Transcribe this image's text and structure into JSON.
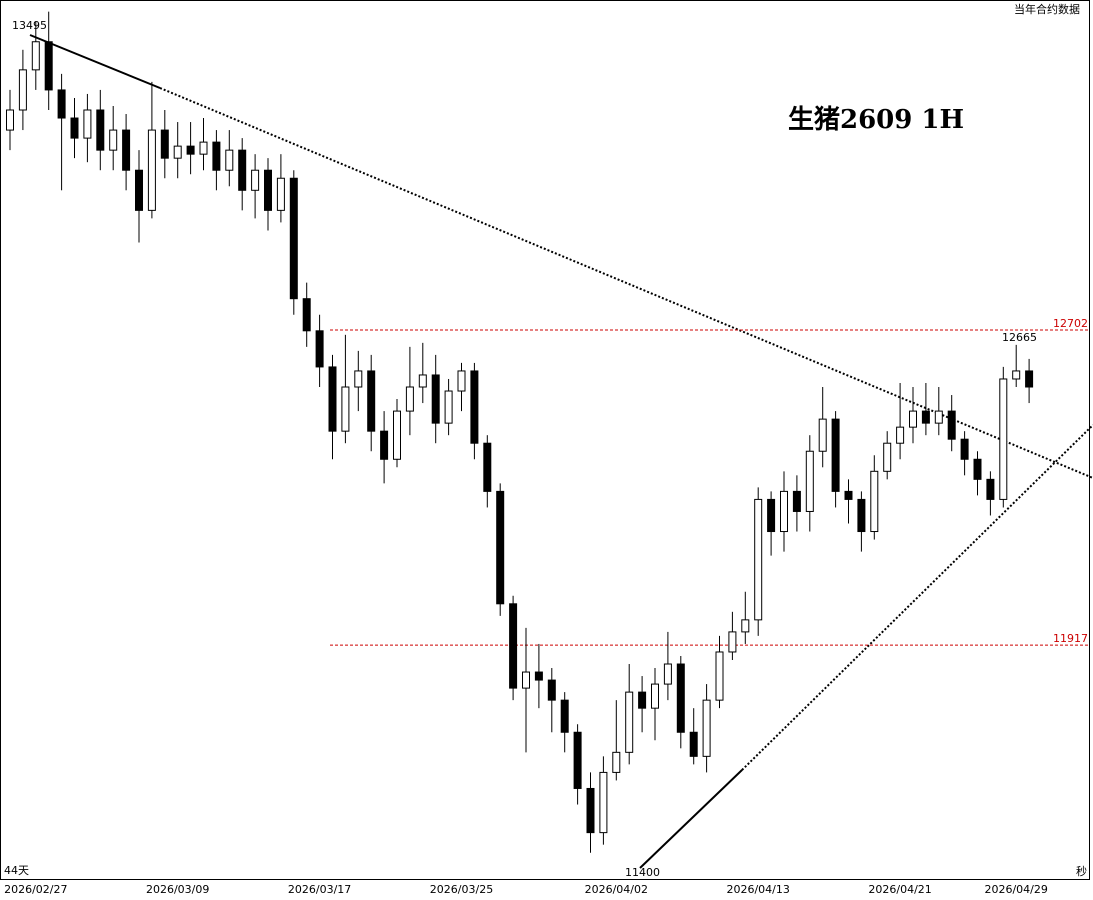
{
  "chart_data": {
    "type": "candlestick",
    "title": "生猪2609  1H",
    "subtitle": "当年合约数据",
    "span_label": "44天",
    "corner_label": "秒",
    "categories": [
      null,
      null,
      "2026/02/27",
      null,
      null,
      null,
      null,
      null,
      null,
      null,
      null,
      null,
      null,
      "2026/03/09",
      null,
      null,
      null,
      null,
      null,
      null,
      null,
      null,
      null,
      null,
      "2026/03/17",
      null,
      null,
      null,
      null,
      null,
      null,
      null,
      null,
      null,
      null,
      "2026/03/25",
      null,
      null,
      null,
      null,
      null,
      null,
      null,
      null,
      null,
      null,
      null,
      "2026/04/02",
      null,
      null,
      null,
      null,
      null,
      null,
      null,
      null,
      null,
      null,
      "2026/04/13",
      null,
      null,
      null,
      null,
      null,
      null,
      null,
      null,
      null,
      null,
      "2026/04/21",
      null,
      null,
      null,
      null,
      null,
      null,
      null,
      null,
      "2026/04/29",
      null
    ],
    "open": [
      13200,
      13250,
      13350,
      13420,
      13300,
      13230,
      13180,
      13250,
      13150,
      13200,
      13100,
      13000,
      13200,
      13130,
      13160,
      13140,
      13170,
      13100,
      13150,
      13050,
      13100,
      13000,
      13080,
      12780,
      12700,
      12610,
      12450,
      12560,
      12600,
      12450,
      12380,
      12500,
      12560,
      12590,
      12470,
      12550,
      12600,
      12420,
      12300,
      12020,
      11810,
      11850,
      11830,
      11780,
      11700,
      11560,
      11450,
      11600,
      11650,
      11800,
      11760,
      11820,
      11870,
      11700,
      11640,
      11780,
      11900,
      11950,
      11980,
      12280,
      12200,
      12300,
      12250,
      12400,
      12480,
      12300,
      12280,
      12200,
      12350,
      12420,
      12460,
      12500,
      12470,
      12500,
      12430,
      12380,
      12330,
      12280,
      12580,
      12600
    ],
    "high": [
      13300,
      13400,
      13470,
      13495,
      13340,
      13280,
      13290,
      13300,
      13260,
      13240,
      13150,
      13320,
      13250,
      13220,
      13220,
      13230,
      13200,
      13200,
      13180,
      13140,
      13130,
      13140,
      13100,
      12820,
      12740,
      12640,
      12690,
      12650,
      12640,
      12500,
      12530,
      12660,
      12670,
      12640,
      12580,
      12620,
      12620,
      12440,
      12320,
      12040,
      11960,
      11920,
      11860,
      11800,
      11720,
      11600,
      11640,
      11780,
      11870,
      11840,
      11860,
      11950,
      11890,
      11760,
      11820,
      11940,
      12000,
      12050,
      12310,
      12300,
      12350,
      12340,
      12440,
      12560,
      12500,
      12330,
      12300,
      12390,
      12450,
      12570,
      12560,
      12570,
      12560,
      12540,
      12450,
      12400,
      12350,
      12610,
      12665,
      12630
    ],
    "low": [
      13150,
      13200,
      13300,
      13250,
      13050,
      13130,
      13120,
      13100,
      13100,
      13050,
      12920,
      12980,
      13080,
      13080,
      13090,
      13100,
      13050,
      13060,
      13000,
      12980,
      12950,
      12970,
      12740,
      12660,
      12560,
      12380,
      12420,
      12500,
      12400,
      12320,
      12360,
      12440,
      12520,
      12420,
      12440,
      12500,
      12380,
      12260,
      11990,
      11780,
      11650,
      11760,
      11700,
      11650,
      11520,
      11400,
      11420,
      11580,
      11620,
      11700,
      11680,
      11780,
      11660,
      11620,
      11600,
      11760,
      11880,
      11920,
      11940,
      12140,
      12150,
      12200,
      12200,
      12360,
      12260,
      12220,
      12150,
      12180,
      12330,
      12380,
      12420,
      12440,
      12440,
      12400,
      12340,
      12290,
      12240,
      12260,
      12560,
      12520
    ],
    "close": [
      13250,
      13350,
      13420,
      13300,
      13230,
      13180,
      13250,
      13150,
      13200,
      13100,
      13000,
      13200,
      13130,
      13160,
      13140,
      13170,
      13100,
      13150,
      13050,
      13100,
      13000,
      13080,
      12780,
      12700,
      12610,
      12450,
      12560,
      12600,
      12450,
      12380,
      12500,
      12560,
      12590,
      12470,
      12550,
      12600,
      12420,
      12300,
      12020,
      11810,
      11850,
      11830,
      11780,
      11700,
      11560,
      11450,
      11600,
      11650,
      11800,
      11760,
      11820,
      11870,
      11700,
      11640,
      11780,
      11900,
      11950,
      11980,
      12280,
      12200,
      12300,
      12250,
      12400,
      12480,
      12300,
      12280,
      12200,
      12350,
      12420,
      12460,
      12500,
      12470,
      12500,
      12430,
      12380,
      12330,
      12280,
      12580,
      12600,
      12560
    ],
    "up_color": "#ffffff",
    "down_color": "#000000",
    "ylim": [
      11332,
      13524
    ],
    "reference_lines": [
      {
        "value": 12702,
        "color": "#cc0000"
      },
      {
        "value": 11917,
        "color": "#cc0000"
      }
    ],
    "annotations": [
      13495,
      11400,
      12665
    ]
  }
}
